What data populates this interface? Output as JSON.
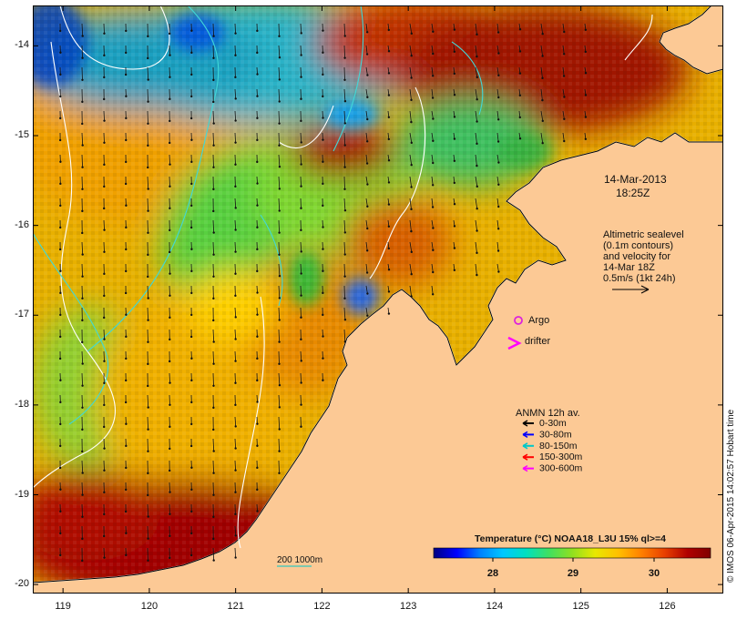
{
  "map": {
    "lon_ticks": [
      "119",
      "120",
      "121",
      "122",
      "123",
      "124",
      "125",
      "126"
    ],
    "lat_ticks": [
      "-14",
      "-15",
      "-16",
      "-17",
      "-18",
      "-19",
      "-20"
    ],
    "lon_range": [
      118.65,
      126.65
    ],
    "lat_range": [
      -20.1,
      -13.55
    ]
  },
  "annotations": {
    "date_line1": "14-Mar-2013",
    "date_line2": "18:25Z",
    "alt_line1": "Altimetric sealevel",
    "alt_line2": "(0.1m contours)",
    "alt_line3": "and velocity for",
    "alt_line4": "14-Mar 18Z",
    "alt_line5": "0.5m/s (1kt 24h)"
  },
  "legend": {
    "argo": "Argo",
    "drifter": "drifter",
    "anmn_title": "ANMN 12h av.",
    "depths": [
      {
        "label": "0-30m",
        "color": "#000000"
      },
      {
        "label": "30-80m",
        "color": "#0000ff"
      },
      {
        "label": "80-150m",
        "color": "#00c8c8"
      },
      {
        "label": "150-300m",
        "color": "#ff0000"
      },
      {
        "label": "300-600m",
        "color": "#ff00ff"
      }
    ],
    "argo_color": "#dd22dd",
    "drifter_color": "#ff00ff"
  },
  "colorbar": {
    "title": "Temperature (°C) NOAA18_L3U 15% ql>=4",
    "ticks": [
      "28",
      "29",
      "30"
    ],
    "colors": [
      "#000080",
      "#0000ff",
      "#0080ff",
      "#00c8ff",
      "#00e0c0",
      "#40e060",
      "#90e020",
      "#e8e800",
      "#ffc000",
      "#ff8000",
      "#e84000",
      "#b00000",
      "#800000"
    ]
  },
  "scale": {
    "label": "200  1000m",
    "color": "#00c8c8"
  },
  "credit": "© IMOS 06-Apr-2015 14:02:57 Hobart time",
  "colors": {
    "land": "#fcc995",
    "frame": "#000000"
  }
}
